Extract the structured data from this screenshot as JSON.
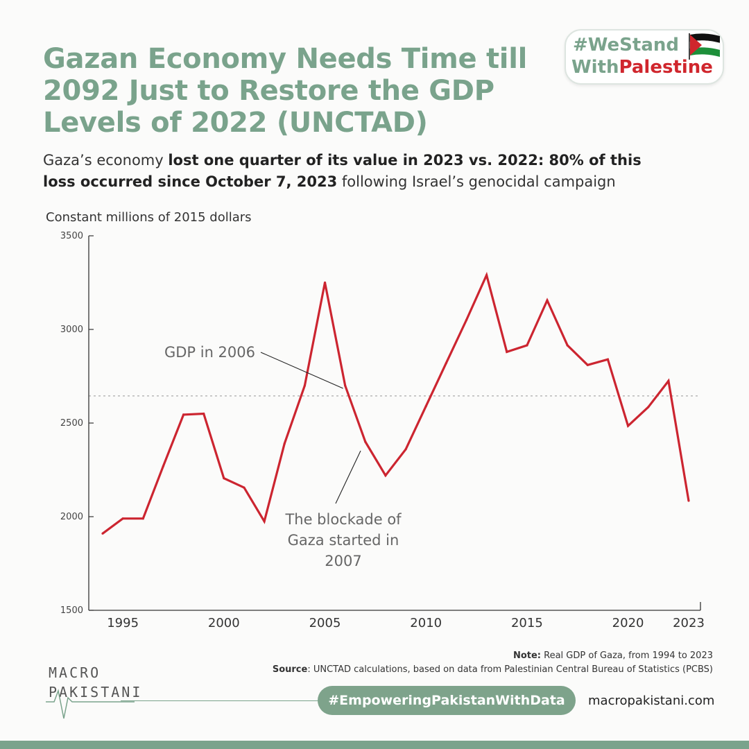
{
  "header": {
    "title": "Gazan Economy Needs Time till 2092 Just to Restore the GDP Levels of 2022 (UNCTAD)",
    "subtitle_pre": "Gaza’s economy ",
    "subtitle_bold": "lost one quarter of its value in 2023 vs. 2022: 80% of this loss occurred since October 7, 2023",
    "subtitle_post": " following Israel’s genocidal campaign"
  },
  "badge": {
    "line1": "#WeStand",
    "line2_a": "With",
    "line2_b": "Palestine",
    "flag_icon": "palestine-flag-icon",
    "colors": {
      "green": "#7aa38c",
      "red": "#d0262d"
    }
  },
  "chart_data": {
    "type": "line",
    "title": "",
    "ylabel": "Constant millions of 2015 dollars",
    "xlabel": "",
    "ylim": [
      1500,
      3500
    ],
    "xlim": [
      1994,
      2023
    ],
    "grid": false,
    "x_ticks": [
      "1995",
      "2000",
      "2005",
      "2010",
      "2015",
      "2020",
      "2023"
    ],
    "y_ticks": [
      "1500",
      "2000",
      "2500",
      "3000",
      "3500"
    ],
    "series": [
      {
        "color": "#cc2530",
        "x": [
          1994,
          1995,
          1996,
          1997,
          1998,
          1999,
          2000,
          2001,
          2002,
          2003,
          2004,
          2005,
          2006,
          2007,
          2008,
          2009,
          2010,
          2011,
          2012,
          2013,
          2014,
          2015,
          2016,
          2017,
          2018,
          2019,
          2020,
          2021,
          2022,
          2023
        ],
        "values": [
          1910,
          1990,
          1990,
          2270,
          2545,
          2550,
          2205,
          2155,
          1975,
          2390,
          2700,
          3250,
          2700,
          2400,
          2220,
          2360,
          2590,
          2820,
          3050,
          3290,
          2880,
          2915,
          3155,
          2915,
          2810,
          2840,
          2485,
          2585,
          2725,
          2085
        ]
      }
    ],
    "reference_line": {
      "value": 2645,
      "style": "dotted",
      "color": "#aaaaaa"
    },
    "annotations": [
      {
        "text_lines": [
          "GDP in 2006"
        ],
        "target_x": 2006
      },
      {
        "text_lines": [
          "The blockade of",
          "Gaza started in",
          "2007"
        ],
        "target_x": 2007
      }
    ]
  },
  "footer": {
    "note_label": "Note:",
    "note_text": " Real GDP of Gaza, from 1994 to 2023",
    "source_label": "Source",
    "source_text": ": UNCTAD calculations, based on data from Palestinian Central Bureau of Statistics (PCBS)",
    "logo_line1": "MACRO",
    "logo_line2": "PAKISTANI",
    "hashtag": "#EmpoweringPakistanWithData",
    "site": "macropakistani.com",
    "accent": "#7aa38c"
  }
}
